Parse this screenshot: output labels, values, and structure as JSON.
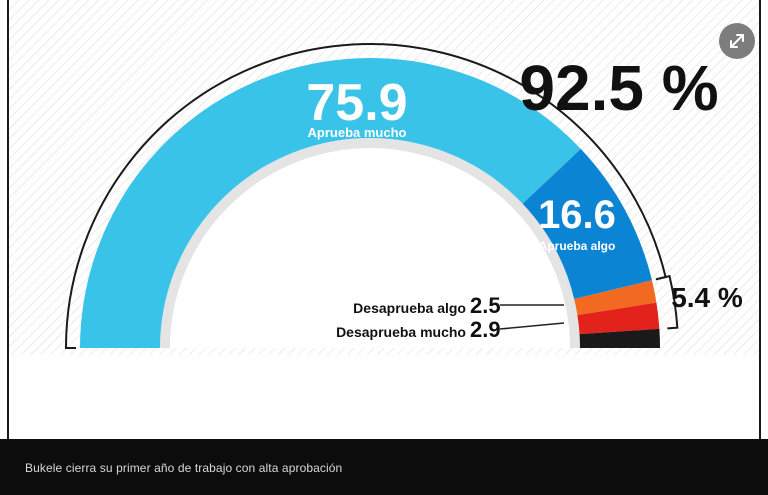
{
  "chart_data": {
    "type": "pie",
    "subtype": "semicircle-donut",
    "series": [
      {
        "label": "Aprueba mucho",
        "value": 75.9,
        "color": "#3ac3e8"
      },
      {
        "label": "Aprueba algo",
        "value": 16.6,
        "color": "#0c84d4"
      },
      {
        "label": "Desaprueba algo",
        "value": 2.5,
        "color": "#f26a21"
      },
      {
        "label": "Desaprueba mucho",
        "value": 2.9,
        "color": "#e3221c"
      },
      {
        "label": "",
        "value": 2.1,
        "color": "#1a1a1a"
      }
    ],
    "groups": [
      {
        "label": "92.5 %",
        "value": 92.5
      },
      {
        "label": "5.4 %",
        "value": 5.4
      }
    ],
    "value_labels": [
      "75.9",
      "16.6",
      "2.5",
      "2.9"
    ]
  },
  "caption": {
    "text": "Bukele cierra su primer año de trabajo con alta aprobación"
  },
  "controls": {
    "expand_icon": "expand-icon"
  }
}
